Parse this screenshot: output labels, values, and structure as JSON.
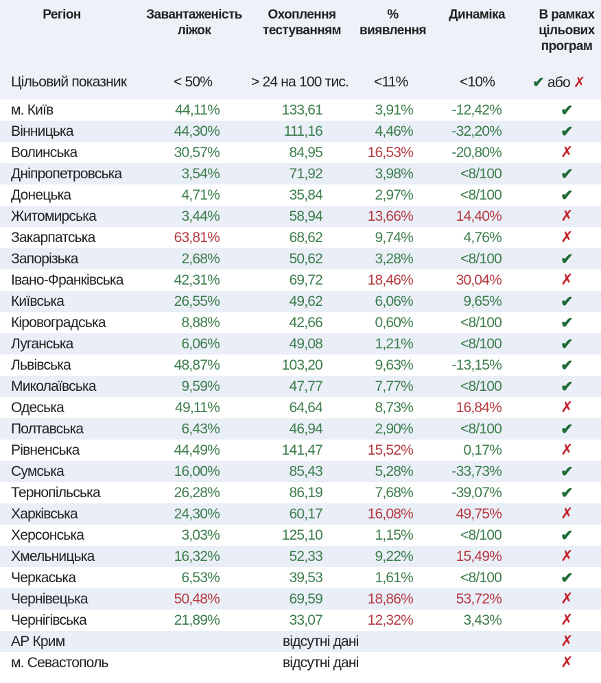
{
  "colors": {
    "ok": "#3d7d4c",
    "bad": "#b53a40",
    "check": "#1e6b36",
    "cross": "#c4202a"
  },
  "header": {
    "region": "Регіон",
    "beds": [
      "Завантаженість",
      "ліжок"
    ],
    "tests": [
      "Охоплення",
      "тестуванням"
    ],
    "detect": [
      "%",
      "виявлення"
    ],
    "dyn": "Динаміка",
    "program": [
      "В рамках",
      "цільових",
      "програм"
    ]
  },
  "target": {
    "label": "Цільовий показник",
    "beds": "< 50%",
    "tests": "> 24 на 100 тис.",
    "detect": "<11%",
    "dyn": "<10%",
    "or": "або"
  },
  "rows": [
    {
      "region": "м. Київ",
      "beds": [
        "44,11%",
        "ok"
      ],
      "tests": [
        "133,61",
        "ok"
      ],
      "detect": [
        "3,91%",
        "ok"
      ],
      "dyn": [
        "-12,42%",
        "ok"
      ],
      "program": "check"
    },
    {
      "region": "Вінницька",
      "beds": [
        "44,30%",
        "ok"
      ],
      "tests": [
        "111,16",
        "ok"
      ],
      "detect": [
        "4,46%",
        "ok"
      ],
      "dyn": [
        "-32,20%",
        "ok"
      ],
      "program": "check"
    },
    {
      "region": "Волинська",
      "beds": [
        "30,57%",
        "ok"
      ],
      "tests": [
        "84,95",
        "ok"
      ],
      "detect": [
        "16,53%",
        "bad"
      ],
      "dyn": [
        "-20,80%",
        "ok"
      ],
      "program": "cross"
    },
    {
      "region": "Дніпропетровська",
      "beds": [
        "3,54%",
        "ok"
      ],
      "tests": [
        "71,92",
        "ok"
      ],
      "detect": [
        "3,98%",
        "ok"
      ],
      "dyn": [
        "<8/100",
        "ok"
      ],
      "program": "check"
    },
    {
      "region": "Донецька",
      "beds": [
        "4,71%",
        "ok"
      ],
      "tests": [
        "35,84",
        "ok"
      ],
      "detect": [
        "2,97%",
        "ok"
      ],
      "dyn": [
        "<8/100",
        "ok"
      ],
      "program": "check"
    },
    {
      "region": "Житомирська",
      "beds": [
        "3,44%",
        "ok"
      ],
      "tests": [
        "58,94",
        "ok"
      ],
      "detect": [
        "13,66%",
        "bad"
      ],
      "dyn": [
        "14,40%",
        "bad"
      ],
      "program": "cross"
    },
    {
      "region": "Закарпатська",
      "beds": [
        "63,81%",
        "bad"
      ],
      "tests": [
        "68,62",
        "ok"
      ],
      "detect": [
        "9,74%",
        "ok"
      ],
      "dyn": [
        "4,76%",
        "ok"
      ],
      "program": "cross"
    },
    {
      "region": "Запорізька",
      "beds": [
        "2,68%",
        "ok"
      ],
      "tests": [
        "50,62",
        "ok"
      ],
      "detect": [
        "3,28%",
        "ok"
      ],
      "dyn": [
        "<8/100",
        "ok"
      ],
      "program": "check"
    },
    {
      "region": "Івано-Франківська",
      "beds": [
        "42,31%",
        "ok"
      ],
      "tests": [
        "69,72",
        "ok"
      ],
      "detect": [
        "18,46%",
        "bad"
      ],
      "dyn": [
        "30,04%",
        "bad"
      ],
      "program": "cross"
    },
    {
      "region": "Київська",
      "beds": [
        "26,55%",
        "ok"
      ],
      "tests": [
        "49,62",
        "ok"
      ],
      "detect": [
        "6,06%",
        "ok"
      ],
      "dyn": [
        "9,65%",
        "ok"
      ],
      "program": "check"
    },
    {
      "region": "Кіровоградська",
      "beds": [
        "8,88%",
        "ok"
      ],
      "tests": [
        "42,66",
        "ok"
      ],
      "detect": [
        "0,60%",
        "ok"
      ],
      "dyn": [
        "<8/100",
        "ok"
      ],
      "program": "check"
    },
    {
      "region": "Луганська",
      "beds": [
        "6,06%",
        "ok"
      ],
      "tests": [
        "49,08",
        "ok"
      ],
      "detect": [
        "1,21%",
        "ok"
      ],
      "dyn": [
        "<8/100",
        "ok"
      ],
      "program": "check"
    },
    {
      "region": "Львівська",
      "beds": [
        "48,87%",
        "ok"
      ],
      "tests": [
        "103,20",
        "ok"
      ],
      "detect": [
        "9,63%",
        "ok"
      ],
      "dyn": [
        "-13,15%",
        "ok"
      ],
      "program": "check"
    },
    {
      "region": "Миколаївська",
      "beds": [
        "9,59%",
        "ok"
      ],
      "tests": [
        "47,77",
        "ok"
      ],
      "detect": [
        "7,77%",
        "ok"
      ],
      "dyn": [
        "<8/100",
        "ok"
      ],
      "program": "check"
    },
    {
      "region": "Одеська",
      "beds": [
        "49,11%",
        "ok"
      ],
      "tests": [
        "64,64",
        "ok"
      ],
      "detect": [
        "8,73%",
        "ok"
      ],
      "dyn": [
        "16,84%",
        "bad"
      ],
      "program": "cross"
    },
    {
      "region": "Полтавська",
      "beds": [
        "6,43%",
        "ok"
      ],
      "tests": [
        "46,94",
        "ok"
      ],
      "detect": [
        "2,90%",
        "ok"
      ],
      "dyn": [
        "<8/100",
        "ok"
      ],
      "program": "check"
    },
    {
      "region": "Рівненська",
      "beds": [
        "44,49%",
        "ok"
      ],
      "tests": [
        "141,47",
        "ok"
      ],
      "detect": [
        "15,52%",
        "bad"
      ],
      "dyn": [
        "0,17%",
        "ok"
      ],
      "program": "cross"
    },
    {
      "region": "Сумська",
      "beds": [
        "16,00%",
        "ok"
      ],
      "tests": [
        "85,43",
        "ok"
      ],
      "detect": [
        "5,28%",
        "ok"
      ],
      "dyn": [
        "-33,73%",
        "ok"
      ],
      "program": "check"
    },
    {
      "region": "Тернопільська",
      "beds": [
        "26,28%",
        "ok"
      ],
      "tests": [
        "86,19",
        "ok"
      ],
      "detect": [
        "7,68%",
        "ok"
      ],
      "dyn": [
        "-39,07%",
        "ok"
      ],
      "program": "check"
    },
    {
      "region": "Харківська",
      "beds": [
        "24,30%",
        "ok"
      ],
      "tests": [
        "60,17",
        "ok"
      ],
      "detect": [
        "16,08%",
        "bad"
      ],
      "dyn": [
        "49,75%",
        "bad"
      ],
      "program": "cross"
    },
    {
      "region": "Херсонська",
      "beds": [
        "3,03%",
        "ok"
      ],
      "tests": [
        "125,10",
        "ok"
      ],
      "detect": [
        "1,15%",
        "ok"
      ],
      "dyn": [
        "<8/100",
        "ok"
      ],
      "program": "check"
    },
    {
      "region": "Хмельницька",
      "beds": [
        "16,32%",
        "ok"
      ],
      "tests": [
        "52,33",
        "ok"
      ],
      "detect": [
        "9,22%",
        "ok"
      ],
      "dyn": [
        "15,49%",
        "bad"
      ],
      "program": "cross"
    },
    {
      "region": "Черкаська",
      "beds": [
        "6,53%",
        "ok"
      ],
      "tests": [
        "39,53",
        "ok"
      ],
      "detect": [
        "1,61%",
        "ok"
      ],
      "dyn": [
        "<8/100",
        "ok"
      ],
      "program": "check"
    },
    {
      "region": "Чернівецька",
      "beds": [
        "50,48%",
        "bad"
      ],
      "tests": [
        "69,59",
        "ok"
      ],
      "detect": [
        "18,86%",
        "bad"
      ],
      "dyn": [
        "53,72%",
        "bad"
      ],
      "program": "cross"
    },
    {
      "region": "Чернігівська",
      "beds": [
        "21,89%",
        "ok"
      ],
      "tests": [
        "33,07",
        "ok"
      ],
      "detect": [
        "12,32%",
        "bad"
      ],
      "dyn": [
        "3,43%",
        "ok"
      ],
      "program": "cross"
    },
    {
      "region": "АР Крим",
      "missing": "відсутні дані",
      "program": "cross"
    },
    {
      "region": "м. Севастополь",
      "missing": "відсутні дані",
      "program": "cross"
    }
  ]
}
